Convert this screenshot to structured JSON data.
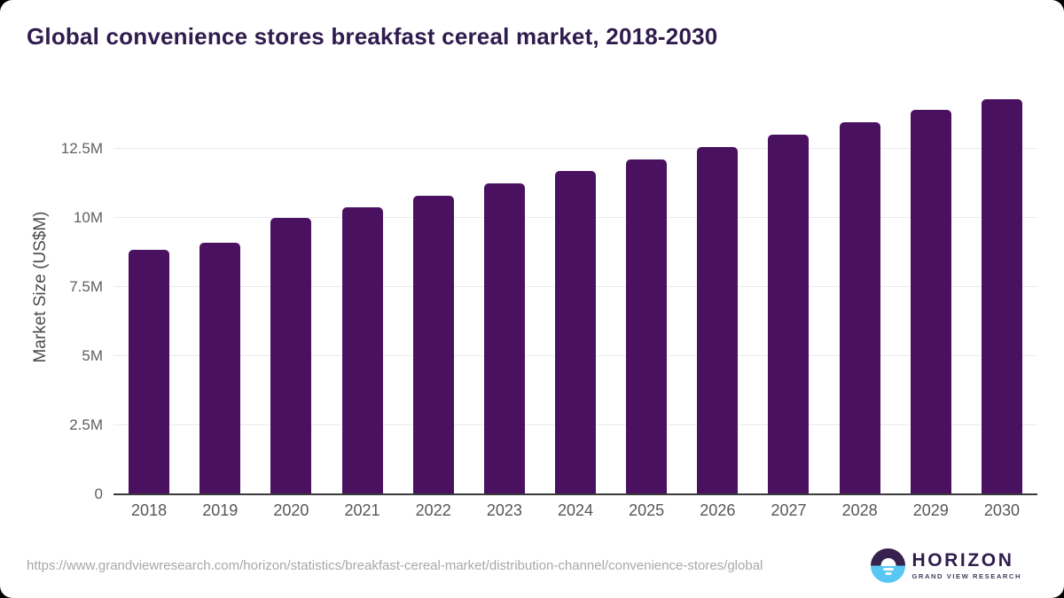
{
  "header": {
    "title": "Global convenience stores breakfast cereal market, 2018-2030"
  },
  "chart_data": {
    "type": "bar",
    "title": "Global convenience stores breakfast cereal market, 2018-2030",
    "categories": [
      "2018",
      "2019",
      "2020",
      "2021",
      "2022",
      "2023",
      "2024",
      "2025",
      "2026",
      "2027",
      "2028",
      "2029",
      "2030"
    ],
    "values": [
      8.85,
      9.1,
      10.0,
      10.4,
      10.8,
      11.25,
      11.7,
      12.1,
      12.55,
      13.0,
      13.45,
      13.9,
      14.3
    ],
    "unit": "US$M",
    "xlabel": "",
    "ylabel": "Market Size (US$M)",
    "ylim": [
      0,
      15
    ],
    "yticks": [
      {
        "value": 0,
        "label": "0"
      },
      {
        "value": 2.5,
        "label": "2.5M"
      },
      {
        "value": 5,
        "label": "5M"
      },
      {
        "value": 7.5,
        "label": "7.5M"
      },
      {
        "value": 10,
        "label": "10M"
      },
      {
        "value": 12.5,
        "label": "12.5M"
      }
    ],
    "grid": true,
    "legend": false,
    "bar_color": "#4a1160"
  },
  "footer": {
    "source_url": "https://www.grandviewresearch.com/horizon/statistics/breakfast-cereal-market/distribution-channel/convenience-stores/global",
    "logo": {
      "brand": "HORIZON",
      "subbrand": "GRAND VIEW RESEARCH",
      "icon": "horizon-sun-circle-icon"
    }
  },
  "colors": {
    "title": "#2f1c4e",
    "bar": "#4a1160",
    "axis_text": "#5f6065",
    "grid": "#ebebeb",
    "baseline": "#3a3a3a",
    "url_text": "#a8a8a8",
    "logo_purple": "#37214f",
    "logo_blue": "#58c7f3",
    "background": "#ffffff"
  }
}
